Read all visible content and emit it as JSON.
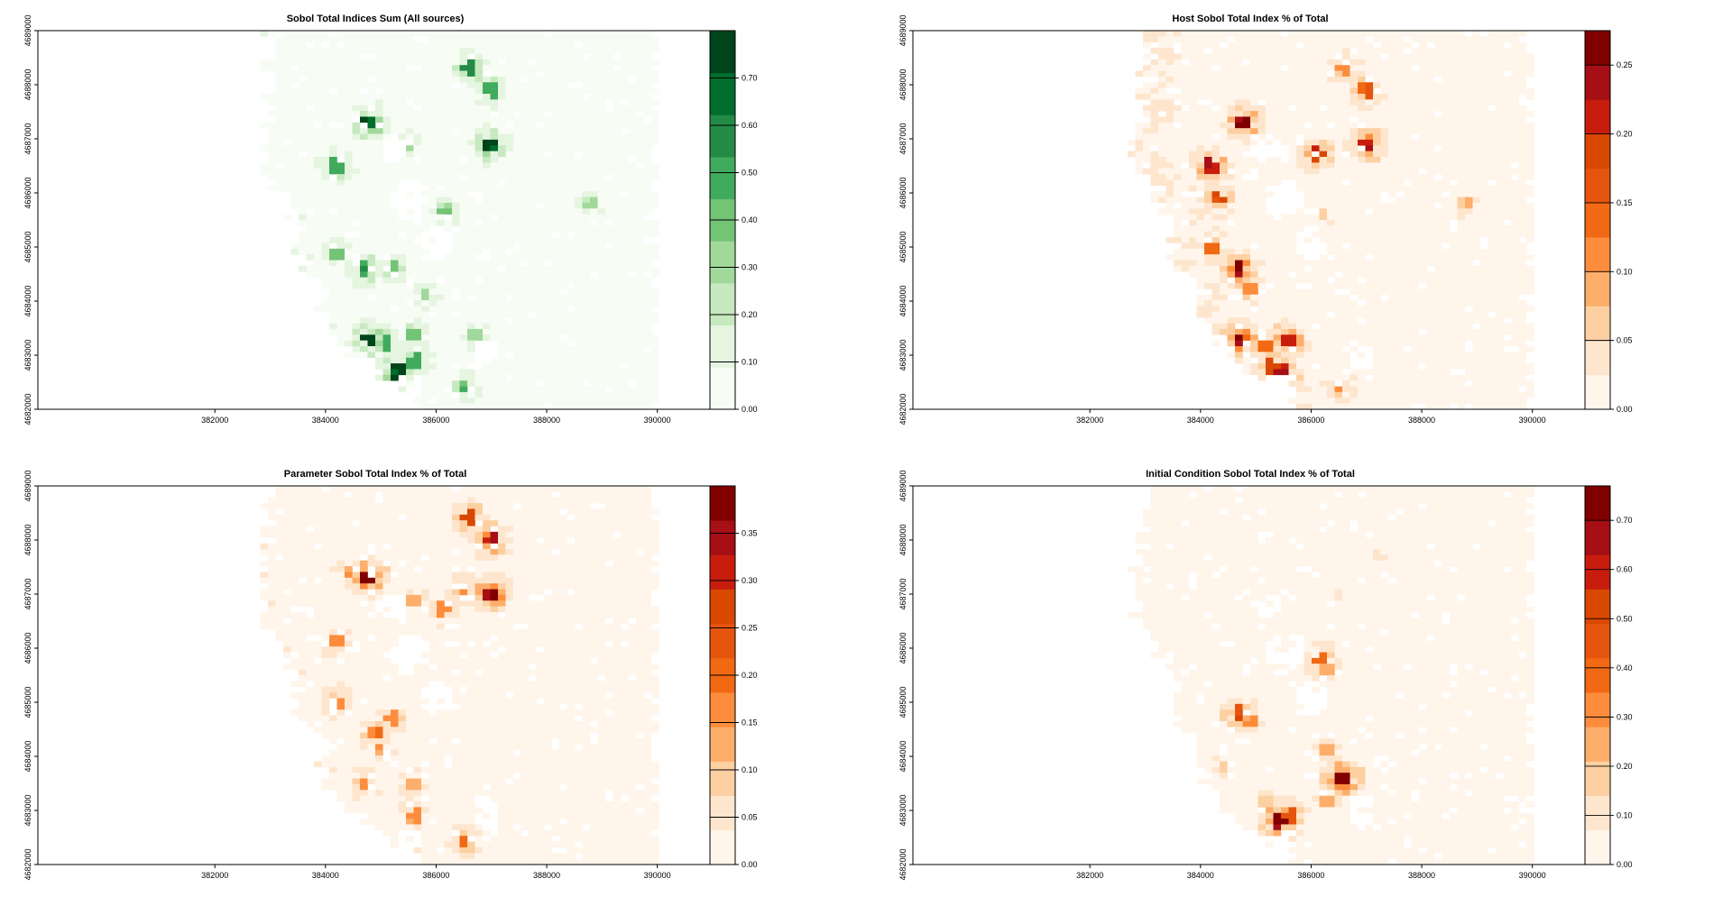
{
  "charts": [
    {
      "id": "sum",
      "title": "Sobol Total Indices Sum (All sources)",
      "palette": "green",
      "colors": [
        "#f7fcf5",
        "#e5f5e0",
        "#c7e9c0",
        "#a1d99b",
        "#74c476",
        "#41ab5d",
        "#238b45",
        "#006d2c",
        "#00441b"
      ],
      "levels": [
        0.0,
        0.1,
        0.2,
        0.3,
        0.4,
        0.5,
        0.6,
        0.7,
        0.8
      ],
      "legend_ticks": [
        "0.00",
        "0.10",
        "0.20",
        "0.30",
        "0.40",
        "0.50",
        "0.60",
        "0.70"
      ],
      "hotspots": [
        {
          "x": 386600,
          "y": 4688300,
          "v": 0.62
        },
        {
          "x": 387000,
          "y": 4687900,
          "v": 0.55
        },
        {
          "x": 384800,
          "y": 4687300,
          "v": 0.8
        },
        {
          "x": 387000,
          "y": 4686900,
          "v": 0.72
        },
        {
          "x": 384200,
          "y": 4686500,
          "v": 0.55
        },
        {
          "x": 385500,
          "y": 4686900,
          "v": 0.35
        },
        {
          "x": 386200,
          "y": 4685700,
          "v": 0.4
        },
        {
          "x": 388800,
          "y": 4685800,
          "v": 0.3
        },
        {
          "x": 384200,
          "y": 4684900,
          "v": 0.45
        },
        {
          "x": 384700,
          "y": 4684600,
          "v": 0.58
        },
        {
          "x": 385200,
          "y": 4684600,
          "v": 0.45
        },
        {
          "x": 385800,
          "y": 4684100,
          "v": 0.35
        },
        {
          "x": 384800,
          "y": 4683300,
          "v": 0.8
        },
        {
          "x": 385100,
          "y": 4683200,
          "v": 0.55
        },
        {
          "x": 385600,
          "y": 4683400,
          "v": 0.45
        },
        {
          "x": 386700,
          "y": 4683400,
          "v": 0.35
        },
        {
          "x": 385300,
          "y": 4682700,
          "v": 0.8
        },
        {
          "x": 385600,
          "y": 4682900,
          "v": 0.55
        },
        {
          "x": 386500,
          "y": 4682400,
          "v": 0.45
        }
      ]
    },
    {
      "id": "host",
      "title": "Host Sobol Total Index % of Total",
      "palette": "red",
      "colors": [
        "#fff5eb",
        "#fee6ce",
        "#fdd0a2",
        "#fdae6b",
        "#fd8d3c",
        "#f16913",
        "#e6550d",
        "#d94801",
        "#c81d0d",
        "#a50f15",
        "#800000"
      ],
      "levels": [
        0.0,
        0.025,
        0.05,
        0.075,
        0.1,
        0.125,
        0.15,
        0.175,
        0.2,
        0.225,
        0.25,
        0.275
      ],
      "legend_ticks": [
        "0.00",
        "0.05",
        "0.10",
        "0.15",
        "0.20",
        "0.25"
      ],
      "hotspots": [
        {
          "x": 386600,
          "y": 4688300,
          "v": 0.12
        },
        {
          "x": 387000,
          "y": 4687900,
          "v": 0.16
        },
        {
          "x": 384800,
          "y": 4687300,
          "v": 0.27
        },
        {
          "x": 387000,
          "y": 4686900,
          "v": 0.26
        },
        {
          "x": 384200,
          "y": 4686500,
          "v": 0.24
        },
        {
          "x": 386100,
          "y": 4686700,
          "v": 0.22
        },
        {
          "x": 384300,
          "y": 4685900,
          "v": 0.18
        },
        {
          "x": 388800,
          "y": 4685800,
          "v": 0.08
        },
        {
          "x": 386200,
          "y": 4685600,
          "v": 0.07
        },
        {
          "x": 384200,
          "y": 4685000,
          "v": 0.15
        },
        {
          "x": 384700,
          "y": 4684600,
          "v": 0.27
        },
        {
          "x": 384900,
          "y": 4684200,
          "v": 0.12
        },
        {
          "x": 384700,
          "y": 4683300,
          "v": 0.27
        },
        {
          "x": 385200,
          "y": 4683200,
          "v": 0.16
        },
        {
          "x": 385600,
          "y": 4683300,
          "v": 0.22
        },
        {
          "x": 385300,
          "y": 4682800,
          "v": 0.2
        },
        {
          "x": 385500,
          "y": 4682700,
          "v": 0.24
        },
        {
          "x": 386500,
          "y": 4682400,
          "v": 0.12
        }
      ]
    },
    {
      "id": "param",
      "title": "Parameter Sobol Total Index % of Total",
      "palette": "red",
      "colors": [
        "#fff5eb",
        "#fee6ce",
        "#fdd0a2",
        "#fdae6b",
        "#fd8d3c",
        "#f16913",
        "#e6550d",
        "#d94801",
        "#c81d0d",
        "#a50f15",
        "#800000"
      ],
      "levels": [
        0.0,
        0.04,
        0.08,
        0.12,
        0.16,
        0.2,
        0.24,
        0.28,
        0.32,
        0.36,
        0.4
      ],
      "legend_ticks": [
        "0.00",
        "0.05",
        "0.10",
        "0.15",
        "0.20",
        "0.25",
        "0.30",
        "0.35"
      ],
      "hotspots": [
        {
          "x": 386600,
          "y": 4688400,
          "v": 0.3
        },
        {
          "x": 387000,
          "y": 4688000,
          "v": 0.36
        },
        {
          "x": 384800,
          "y": 4687300,
          "v": 0.4
        },
        {
          "x": 387000,
          "y": 4687000,
          "v": 0.4
        },
        {
          "x": 384400,
          "y": 4687400,
          "v": 0.15
        },
        {
          "x": 386500,
          "y": 4687100,
          "v": 0.18
        },
        {
          "x": 385600,
          "y": 4686900,
          "v": 0.15
        },
        {
          "x": 386100,
          "y": 4686700,
          "v": 0.17
        },
        {
          "x": 384200,
          "y": 4686100,
          "v": 0.17
        },
        {
          "x": 384200,
          "y": 4685000,
          "v": 0.2
        },
        {
          "x": 385200,
          "y": 4684700,
          "v": 0.18
        },
        {
          "x": 384900,
          "y": 4684400,
          "v": 0.2
        },
        {
          "x": 385000,
          "y": 4684100,
          "v": 0.15
        },
        {
          "x": 384700,
          "y": 4683500,
          "v": 0.18
        },
        {
          "x": 385600,
          "y": 4683500,
          "v": 0.14
        },
        {
          "x": 385600,
          "y": 4682900,
          "v": 0.16
        },
        {
          "x": 386500,
          "y": 4682400,
          "v": 0.22
        }
      ]
    },
    {
      "id": "init",
      "title": "Initial Condition Sobol Total Index % of Total",
      "palette": "red",
      "colors": [
        "#fff5eb",
        "#fee6ce",
        "#fdd0a2",
        "#fdae6b",
        "#fd8d3c",
        "#f16913",
        "#e6550d",
        "#d94801",
        "#c81d0d",
        "#a50f15",
        "#800000"
      ],
      "levels": [
        0.0,
        0.07,
        0.14,
        0.21,
        0.28,
        0.35,
        0.42,
        0.49,
        0.56,
        0.63,
        0.7,
        0.77
      ],
      "legend_ticks": [
        "0.00",
        "0.10",
        "0.20",
        "0.30",
        "0.40",
        "0.50",
        "0.60",
        "0.70"
      ],
      "hotspots": [
        {
          "x": 386500,
          "y": 4687000,
          "v": 0.14
        },
        {
          "x": 387200,
          "y": 4687700,
          "v": 0.08
        },
        {
          "x": 386200,
          "y": 4685800,
          "v": 0.4
        },
        {
          "x": 386300,
          "y": 4685600,
          "v": 0.25
        },
        {
          "x": 384700,
          "y": 4684800,
          "v": 0.55
        },
        {
          "x": 384900,
          "y": 4684700,
          "v": 0.3
        },
        {
          "x": 386300,
          "y": 4684100,
          "v": 0.25
        },
        {
          "x": 386600,
          "y": 4683600,
          "v": 0.77
        },
        {
          "x": 384400,
          "y": 4683800,
          "v": 0.2
        },
        {
          "x": 386200,
          "y": 4683600,
          "v": 0.2
        },
        {
          "x": 385400,
          "y": 4682800,
          "v": 0.77
        },
        {
          "x": 385600,
          "y": 4682900,
          "v": 0.5
        },
        {
          "x": 386300,
          "y": 4683200,
          "v": 0.25
        },
        {
          "x": 385200,
          "y": 4683200,
          "v": 0.18
        }
      ]
    }
  ],
  "x_ticks": [
    "382000",
    "384000",
    "386000",
    "388000",
    "390000"
  ],
  "y_ticks": [
    "4682000",
    "4683000",
    "4684000",
    "4685000",
    "4686000",
    "4687000",
    "4688000",
    "4689000"
  ],
  "chart_data": [
    {
      "type": "heatmap",
      "title": "Sobol Total Indices Sum (All sources)",
      "xlim": [
        378800,
        391000
      ],
      "ylim": [
        4682000,
        4689000
      ],
      "legend_range": [
        0.0,
        0.8
      ],
      "legend_ticks": [
        0.0,
        0.1,
        0.2,
        0.3,
        0.4,
        0.5,
        0.6,
        0.7
      ]
    },
    {
      "type": "heatmap",
      "title": "Host Sobol Total Index % of Total",
      "xlim": [
        378800,
        391000
      ],
      "ylim": [
        4682000,
        4689000
      ],
      "legend_range": [
        0.0,
        0.275
      ],
      "legend_ticks": [
        0.0,
        0.05,
        0.1,
        0.15,
        0.2,
        0.25
      ]
    },
    {
      "type": "heatmap",
      "title": "Parameter Sobol Total Index % of Total",
      "xlim": [
        378800,
        391000
      ],
      "ylim": [
        4682000,
        4689000
      ],
      "legend_range": [
        0.0,
        0.4
      ],
      "legend_ticks": [
        0.0,
        0.05,
        0.1,
        0.15,
        0.2,
        0.25,
        0.3,
        0.35
      ]
    },
    {
      "type": "heatmap",
      "title": "Initial Condition Sobol Total Index % of Total",
      "xlim": [
        378800,
        391000
      ],
      "ylim": [
        4682000,
        4689000
      ],
      "legend_range": [
        0.0,
        0.77
      ],
      "legend_ticks": [
        0.0,
        0.1,
        0.2,
        0.3,
        0.4,
        0.5,
        0.6,
        0.7
      ]
    }
  ]
}
